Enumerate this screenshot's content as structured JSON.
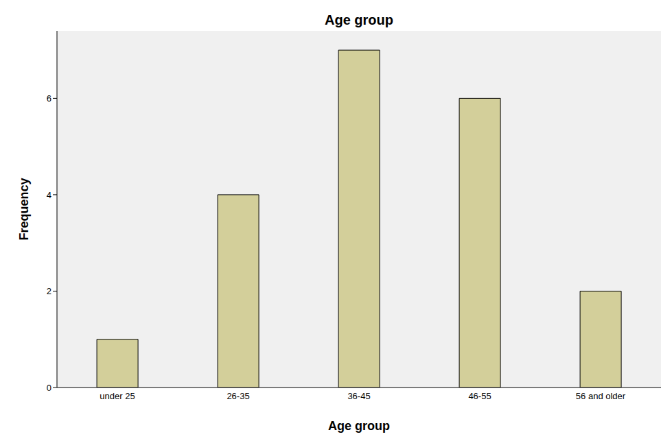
{
  "chart_data": {
    "type": "bar",
    "title": "Age group",
    "x_label": "Age group",
    "y_label": "Frequency",
    "categories": [
      "under 25",
      "26-35",
      "36-45",
      "46-55",
      "56 and older"
    ],
    "values": [
      1,
      4,
      7,
      6,
      2
    ],
    "color": "#d3cf9a",
    "ylim": [
      0,
      7.4
    ],
    "yticks": [
      0,
      2,
      4,
      6
    ],
    "grid": false
  }
}
